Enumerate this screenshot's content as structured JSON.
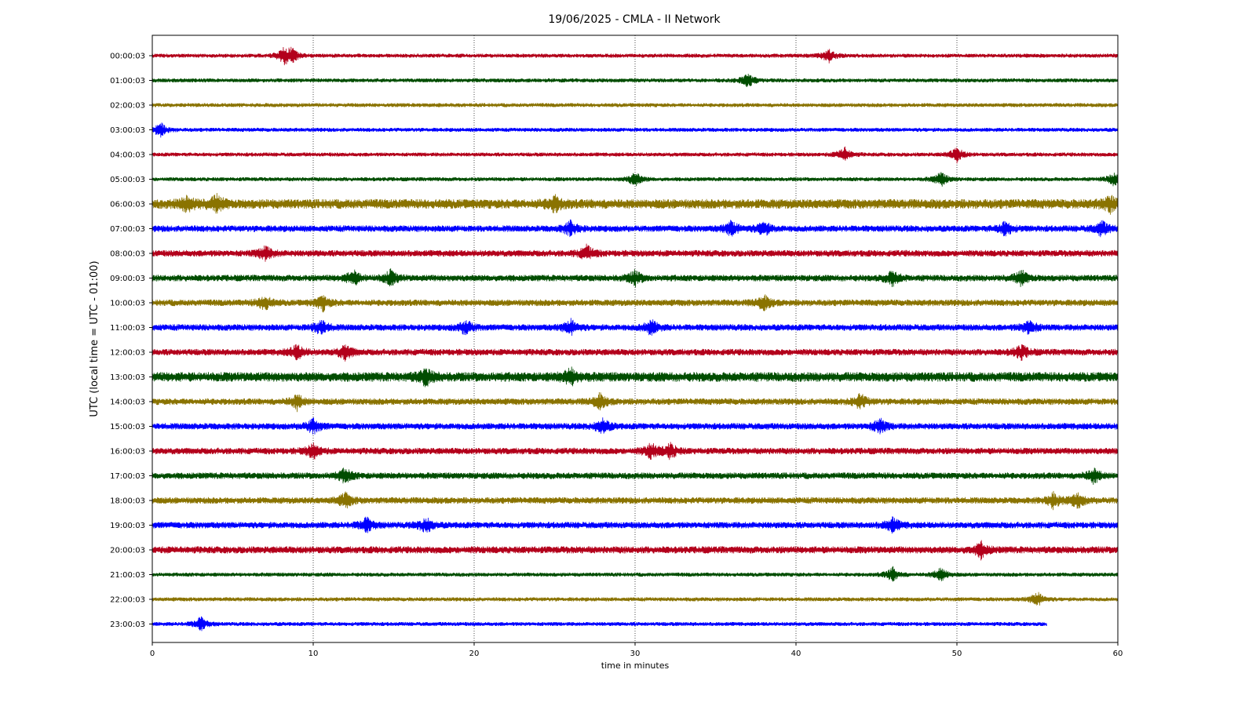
{
  "chart_data": {
    "type": "line",
    "title": "19/06/2025 - CMLA - II Network",
    "xlabel": "time in minutes",
    "ylabel": "UTC (local time = UTC - 01:00)",
    "xlim": [
      0,
      60
    ],
    "x_ticks": [
      "0",
      "10",
      "20",
      "30",
      "40",
      "50",
      "60"
    ],
    "grid": "vertical dotted",
    "colors": [
      "#b3001b",
      "#004d00",
      "#8a7300",
      "#0000ff"
    ],
    "series": [
      {
        "label": "00:00:03",
        "end_minute": 60,
        "events": [
          8.2,
          8.7,
          42
        ]
      },
      {
        "label": "01:00:03",
        "end_minute": 60,
        "events": [
          37
        ]
      },
      {
        "label": "02:00:03",
        "end_minute": 60,
        "events": []
      },
      {
        "label": "03:00:03",
        "end_minute": 60,
        "events": [
          0.5
        ]
      },
      {
        "label": "04:00:03",
        "end_minute": 60,
        "events": [
          43,
          50
        ]
      },
      {
        "label": "05:00:03",
        "end_minute": 60,
        "events": [
          30,
          49,
          59.8
        ]
      },
      {
        "label": "06:00:03",
        "end_minute": 60,
        "events": [
          2.2,
          4,
          25,
          59.5
        ]
      },
      {
        "label": "07:00:03",
        "end_minute": 60,
        "events": [
          26,
          36,
          38,
          53,
          59
        ]
      },
      {
        "label": "08:00:03",
        "end_minute": 60,
        "events": [
          7,
          27
        ]
      },
      {
        "label": "09:00:03",
        "end_minute": 60,
        "events": [
          12.5,
          14.8,
          30,
          46,
          54
        ]
      },
      {
        "label": "10:00:03",
        "end_minute": 60,
        "events": [
          7,
          10.6,
          38
        ]
      },
      {
        "label": "11:00:03",
        "end_minute": 60,
        "events": [
          10.5,
          19.5,
          26,
          31,
          54.5
        ]
      },
      {
        "label": "12:00:03",
        "end_minute": 60,
        "events": [
          9,
          12,
          54
        ]
      },
      {
        "label": "13:00:03",
        "end_minute": 60,
        "events": [
          17,
          26
        ]
      },
      {
        "label": "14:00:03",
        "end_minute": 60,
        "events": [
          9,
          27.8,
          44
        ]
      },
      {
        "label": "15:00:03",
        "end_minute": 60,
        "events": [
          10,
          28,
          45.2
        ]
      },
      {
        "label": "16:00:03",
        "end_minute": 60,
        "events": [
          10,
          31,
          32.2
        ]
      },
      {
        "label": "17:00:03",
        "end_minute": 60,
        "events": [
          12,
          58.5
        ]
      },
      {
        "label": "18:00:03",
        "end_minute": 60,
        "events": [
          12,
          56,
          57.5
        ]
      },
      {
        "label": "19:00:03",
        "end_minute": 60,
        "events": [
          13.3,
          17,
          46
        ]
      },
      {
        "label": "20:00:03",
        "end_minute": 60,
        "events": [
          51.5
        ]
      },
      {
        "label": "21:00:03",
        "end_minute": 60,
        "events": [
          46,
          49
        ]
      },
      {
        "label": "22:00:03",
        "end_minute": 60,
        "events": [
          55
        ]
      },
      {
        "label": "23:00:03",
        "end_minute": 55.6,
        "events": [
          3
        ]
      }
    ]
  }
}
